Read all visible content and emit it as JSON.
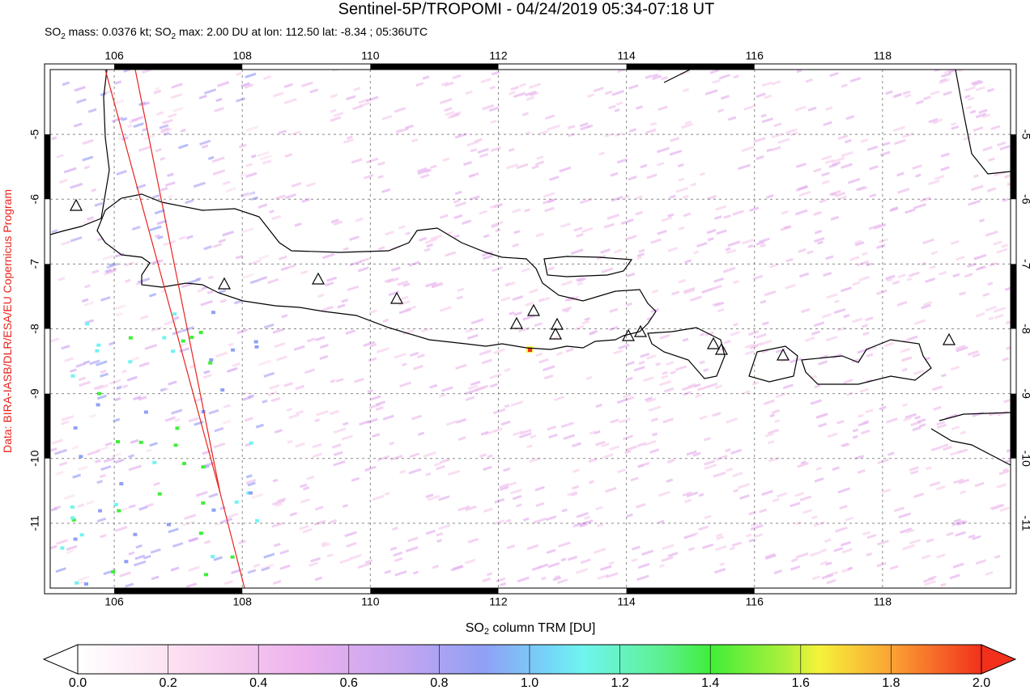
{
  "title": "Sentinel-5P/TROPOMI - 04/24/2019 05:34-07:18 UT",
  "subtitle": [
    "SO",
    "2",
    " mass: 0.0376 kt; SO",
    "2",
    " max: 2.00 DU at lon: 112.50 lat: -8.34 ; 05:36UTC"
  ],
  "credit": "Data: BIRA-IASB/DLR/ESA/EU Copernicus Program",
  "map": {
    "xlim": [
      105,
      120
    ],
    "ylim": [
      -12,
      -4
    ],
    "xticks": [
      106,
      108,
      110,
      112,
      114,
      116,
      118
    ],
    "yticks": [
      -5,
      -6,
      -7,
      -8,
      -9,
      -10,
      -11
    ]
  },
  "colorbar": {
    "label": [
      "SO",
      "2",
      " column TRM [DU]"
    ],
    "lim": [
      0,
      2
    ],
    "ticks": [
      {
        "value": 0,
        "label": "0.0"
      },
      {
        "value": 0.2,
        "label": "0.2"
      },
      {
        "value": 0.4,
        "label": "0.4"
      },
      {
        "value": 0.6,
        "label": "0.6"
      },
      {
        "value": 0.8,
        "label": "0.8"
      },
      {
        "value": 1,
        "label": "1.0"
      },
      {
        "value": 1.2,
        "label": "1.2"
      },
      {
        "value": 1.4,
        "label": "1.4"
      },
      {
        "value": 1.6,
        "label": "1.6"
      },
      {
        "value": 1.8,
        "label": "1.8"
      },
      {
        "value": 2,
        "label": "2.0"
      }
    ]
  }
}
